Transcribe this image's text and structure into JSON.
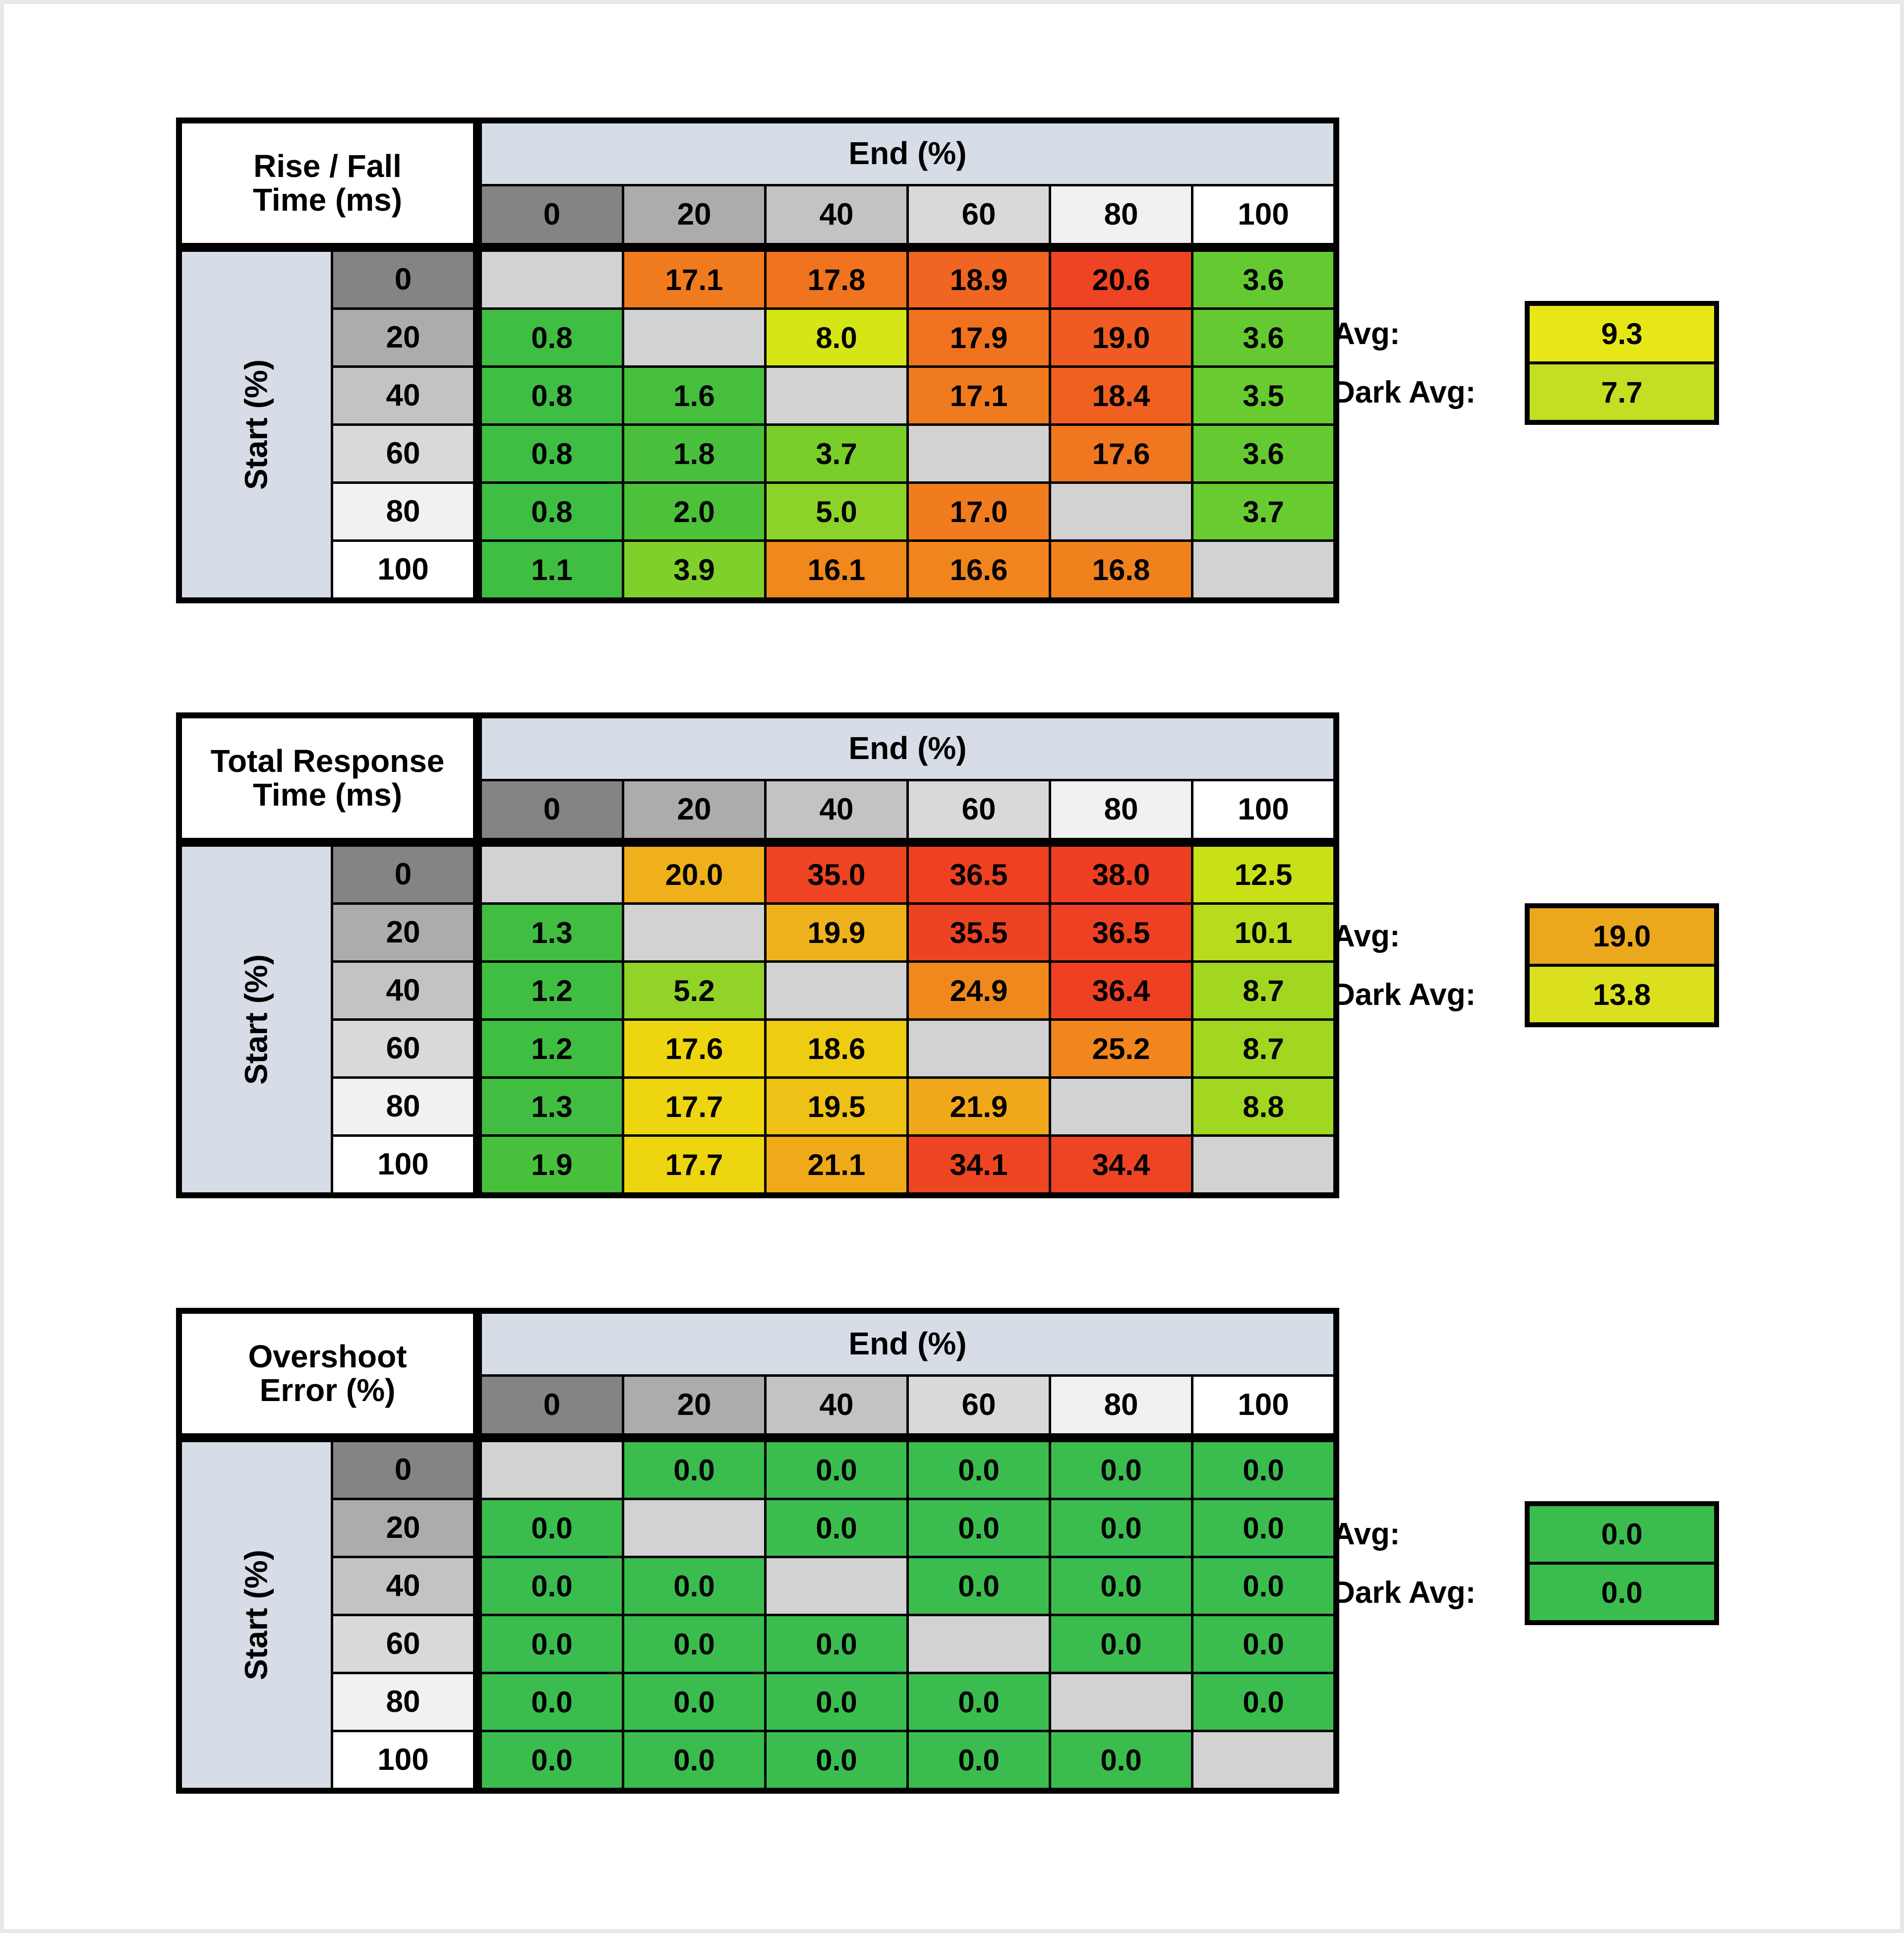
{
  "page": {
    "background": "#ffffff",
    "frame_color": "#e8e8e8",
    "grid_color": "#000000",
    "band_color": "#d7dde6",
    "blank_cell_color": "#d2d2d2",
    "text_color": "#000000"
  },
  "tables": [
    {
      "name": "rise-fall-time",
      "title_lines": [
        "Rise / Fall",
        "Time (ms)"
      ],
      "column_group_label": "End (%)",
      "row_group_label": "Start (%)",
      "column_headers": [
        "0",
        "20",
        "40",
        "60",
        "80",
        "100"
      ],
      "row_headers": [
        "0",
        "20",
        "40",
        "60",
        "80",
        "100"
      ],
      "header_shades": [
        "#848484",
        "#acacac",
        "#c3c3c3",
        "#d9d9d9",
        "#f1f1f1",
        "#ffffff"
      ],
      "values": [
        [
          "",
          "17.1",
          "17.8",
          "18.9",
          "20.6",
          "3.6"
        ],
        [
          "0.8",
          "",
          "8.0",
          "17.9",
          "19.0",
          "3.6"
        ],
        [
          "0.8",
          "1.6",
          "",
          "17.1",
          "18.4",
          "3.5"
        ],
        [
          "0.8",
          "1.8",
          "3.7",
          "",
          "17.6",
          "3.6"
        ],
        [
          "0.8",
          "2.0",
          "5.0",
          "17.0",
          "",
          "3.7"
        ],
        [
          "1.1",
          "3.9",
          "16.1",
          "16.6",
          "16.8",
          ""
        ]
      ],
      "cell_colors": [
        [
          "",
          "#f07b1e",
          "#f0731f",
          "#f06521",
          "#ee4423",
          "#65ca31"
        ],
        [
          "#3ebe43",
          "",
          "#d6e516",
          "#f0721f",
          "#ef5b22",
          "#65ca31"
        ],
        [
          "#3ebe43",
          "#46bf3c",
          "",
          "#f07b1e",
          "#ef6021",
          "#68cb30"
        ],
        [
          "#3ebe43",
          "#49c03b",
          "#79ce2a",
          "",
          "#f0761f",
          "#65ca31"
        ],
        [
          "#3ebe43",
          "#4dc138",
          "#8cd329",
          "#f07c1e",
          "",
          "#68cb30"
        ],
        [
          "#40be41",
          "#7fd02a",
          "#f0881d",
          "#f0841d",
          "#f0821e",
          ""
        ]
      ],
      "summary": {
        "avg_label": "Avg:",
        "avg_value": "9.3",
        "avg_color": "#e7e718",
        "dark_avg_label": "Dark Avg:",
        "dark_avg_value": "7.7",
        "dark_avg_color": "#c4de23"
      }
    },
    {
      "name": "total-response-time",
      "title_lines": [
        "Total Response",
        "Time (ms)"
      ],
      "column_group_label": "End (%)",
      "row_group_label": "Start (%)",
      "column_headers": [
        "0",
        "20",
        "40",
        "60",
        "80",
        "100"
      ],
      "row_headers": [
        "0",
        "20",
        "40",
        "60",
        "80",
        "100"
      ],
      "header_shades": [
        "#848484",
        "#acacac",
        "#c3c3c3",
        "#d9d9d9",
        "#f1f1f1",
        "#ffffff"
      ],
      "values": [
        [
          "",
          "20.0",
          "35.0",
          "36.5",
          "38.0",
          "12.5"
        ],
        [
          "1.3",
          "",
          "19.9",
          "35.5",
          "36.5",
          "10.1"
        ],
        [
          "1.2",
          "5.2",
          "",
          "24.9",
          "36.4",
          "8.7"
        ],
        [
          "1.2",
          "17.6",
          "18.6",
          "",
          "25.2",
          "8.7"
        ],
        [
          "1.3",
          "17.7",
          "19.5",
          "21.9",
          "",
          "8.8"
        ],
        [
          "1.9",
          "17.7",
          "21.1",
          "34.1",
          "34.4",
          ""
        ]
      ],
      "cell_colors": [
        [
          "",
          "#f0b01c",
          "#ee4423",
          "#ee4123",
          "#ee3e23",
          "#c9e018"
        ],
        [
          "#41be41",
          "",
          "#f0b21c",
          "#ee4323",
          "#ee4123",
          "#b8dc1c"
        ],
        [
          "#40be42",
          "#91d427",
          "",
          "#f0891c",
          "#ee4123",
          "#a1d721"
        ],
        [
          "#40be42",
          "#edd60f",
          "#eecc12",
          "",
          "#f0861d",
          "#a1d721"
        ],
        [
          "#41be41",
          "#edd60f",
          "#efc015",
          "#f0a81a",
          "",
          "#a2d721"
        ],
        [
          "#47c03c",
          "#edd60f",
          "#f0aa19",
          "#ee4523",
          "#ee4423",
          ""
        ]
      ],
      "summary": {
        "avg_label": "Avg:",
        "avg_value": "19.0",
        "avg_color": "#eba81d",
        "dark_avg_label": "Dark Avg:",
        "dark_avg_value": "13.8",
        "dark_avg_color": "#dae01e"
      }
    },
    {
      "name": "overshoot-error",
      "title_lines": [
        "Overshoot",
        "Error (%)"
      ],
      "column_group_label": "End (%)",
      "row_group_label": "Start (%)",
      "column_headers": [
        "0",
        "20",
        "40",
        "60",
        "80",
        "100"
      ],
      "row_headers": [
        "0",
        "20",
        "40",
        "60",
        "80",
        "100"
      ],
      "header_shades": [
        "#848484",
        "#acacac",
        "#c3c3c3",
        "#d9d9d9",
        "#f1f1f1",
        "#ffffff"
      ],
      "values": [
        [
          "",
          "0.0",
          "0.0",
          "0.0",
          "0.0",
          "0.0"
        ],
        [
          "0.0",
          "",
          "0.0",
          "0.0",
          "0.0",
          "0.0"
        ],
        [
          "0.0",
          "0.0",
          "",
          "0.0",
          "0.0",
          "0.0"
        ],
        [
          "0.0",
          "0.0",
          "0.0",
          "",
          "0.0",
          "0.0"
        ],
        [
          "0.0",
          "0.0",
          "0.0",
          "0.0",
          "",
          "0.0"
        ],
        [
          "0.0",
          "0.0",
          "0.0",
          "0.0",
          "0.0",
          ""
        ]
      ],
      "cell_colors": [
        [
          "",
          "#3abd4e",
          "#3abd4e",
          "#3abd4e",
          "#3abd4e",
          "#3abd4e"
        ],
        [
          "#3abd4e",
          "",
          "#3abd4e",
          "#3abd4e",
          "#3abd4e",
          "#3abd4e"
        ],
        [
          "#3abd4e",
          "#3abd4e",
          "",
          "#3abd4e",
          "#3abd4e",
          "#3abd4e"
        ],
        [
          "#3abd4e",
          "#3abd4e",
          "#3abd4e",
          "",
          "#3abd4e",
          "#3abd4e"
        ],
        [
          "#3abd4e",
          "#3abd4e",
          "#3abd4e",
          "#3abd4e",
          "",
          "#3abd4e"
        ],
        [
          "#3abd4e",
          "#3abd4e",
          "#3abd4e",
          "#3abd4e",
          "#3abd4e",
          ""
        ]
      ],
      "summary": {
        "avg_label": "Avg:",
        "avg_value": "0.0",
        "avg_color": "#3abd4e",
        "dark_avg_label": "Dark Avg:",
        "dark_avg_value": "0.0",
        "dark_avg_color": "#3abd4e"
      }
    }
  ],
  "chart_data": [
    {
      "type": "heatmap",
      "title": "Rise / Fall Time (ms)",
      "xlabel": "End (%)",
      "ylabel": "Start (%)",
      "x": [
        0,
        20,
        40,
        60,
        80,
        100
      ],
      "y": [
        0,
        20,
        40,
        60,
        80,
        100
      ],
      "values": [
        [
          null,
          17.1,
          17.8,
          18.9,
          20.6,
          3.6
        ],
        [
          0.8,
          null,
          8.0,
          17.9,
          19.0,
          3.6
        ],
        [
          0.8,
          1.6,
          null,
          17.1,
          18.4,
          3.5
        ],
        [
          0.8,
          1.8,
          3.7,
          null,
          17.6,
          3.6
        ],
        [
          0.8,
          2.0,
          5.0,
          17.0,
          null,
          3.7
        ],
        [
          1.1,
          3.9,
          16.1,
          16.6,
          16.8,
          null
        ]
      ],
      "avg": 9.3,
      "dark_avg": 7.7,
      "color_scale": "green-yellow-orange-red (low to high)"
    },
    {
      "type": "heatmap",
      "title": "Total Response Time (ms)",
      "xlabel": "End (%)",
      "ylabel": "Start (%)",
      "x": [
        0,
        20,
        40,
        60,
        80,
        100
      ],
      "y": [
        0,
        20,
        40,
        60,
        80,
        100
      ],
      "values": [
        [
          null,
          20.0,
          35.0,
          36.5,
          38.0,
          12.5
        ],
        [
          1.3,
          null,
          19.9,
          35.5,
          36.5,
          10.1
        ],
        [
          1.2,
          5.2,
          null,
          24.9,
          36.4,
          8.7
        ],
        [
          1.2,
          17.6,
          18.6,
          null,
          25.2,
          8.7
        ],
        [
          1.3,
          17.7,
          19.5,
          21.9,
          null,
          8.8
        ],
        [
          1.9,
          17.7,
          21.1,
          34.1,
          34.4,
          null
        ]
      ],
      "avg": 19.0,
      "dark_avg": 13.8,
      "color_scale": "green-yellow-orange-red (low to high)"
    },
    {
      "type": "heatmap",
      "title": "Overshoot Error (%)",
      "xlabel": "End (%)",
      "ylabel": "Start (%)",
      "x": [
        0,
        20,
        40,
        60,
        80,
        100
      ],
      "y": [
        0,
        20,
        40,
        60,
        80,
        100
      ],
      "values": [
        [
          null,
          0.0,
          0.0,
          0.0,
          0.0,
          0.0
        ],
        [
          0.0,
          null,
          0.0,
          0.0,
          0.0,
          0.0
        ],
        [
          0.0,
          0.0,
          null,
          0.0,
          0.0,
          0.0
        ],
        [
          0.0,
          0.0,
          0.0,
          null,
          0.0,
          0.0
        ],
        [
          0.0,
          0.0,
          0.0,
          0.0,
          null,
          0.0
        ],
        [
          0.0,
          0.0,
          0.0,
          0.0,
          0.0,
          null
        ]
      ],
      "avg": 0.0,
      "dark_avg": 0.0,
      "color_scale": "all green (no overshoot)"
    }
  ]
}
